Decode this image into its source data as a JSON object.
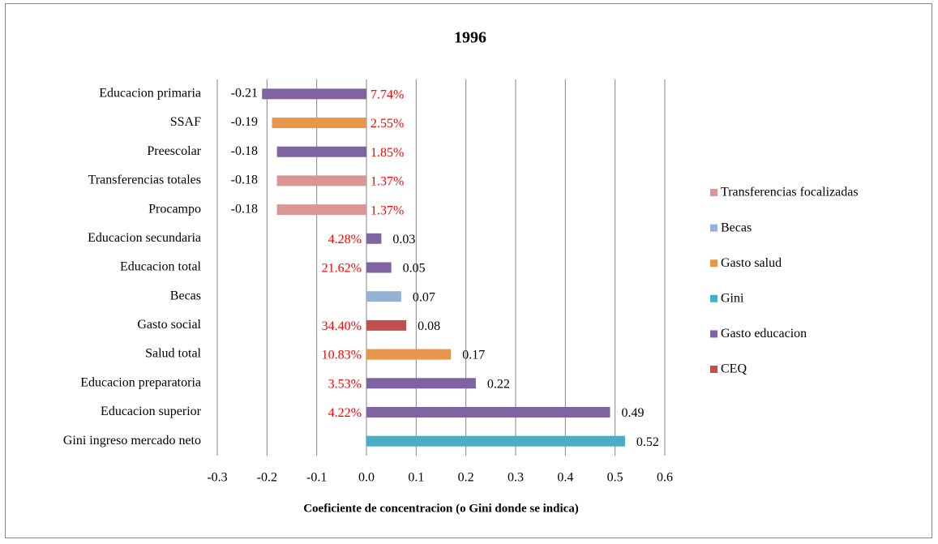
{
  "chart_data": {
    "type": "hbar",
    "title": "1996",
    "x_label": "Coeficiente de concentracion  (o Gini donde se indica)",
    "categories": [
      "Educacion primaria",
      "SSAF",
      "Preescolar",
      "Transferencias totales",
      "Procampo",
      "Educacion secundaria",
      "Educacion total",
      "Becas",
      "Gasto social",
      "Salud total",
      "Educacion preparatoria",
      "Educacion superior",
      "Gini ingreso mercado neto"
    ],
    "annotations": [
      "7.74%",
      "2.55%",
      "1.85%",
      "1.37%",
      "1.37%",
      "4.28%",
      "21.62%",
      null,
      "34.40%",
      "10.83%",
      "3.53%",
      "4.22%",
      null
    ],
    "annotation_color": "#ff0000",
    "series": [
      {
        "name": "Transferencias focalizadas",
        "color": "#d99694",
        "values": [
          null,
          null,
          null,
          -0.18,
          -0.18,
          null,
          null,
          null,
          null,
          null,
          null,
          null,
          null
        ]
      },
      {
        "name": "Becas",
        "color": "#95b3d7",
        "values": [
          null,
          null,
          null,
          null,
          null,
          null,
          null,
          0.07,
          null,
          null,
          null,
          null,
          null
        ]
      },
      {
        "name": "Gasto salud",
        "color": "#e8964a",
        "values": [
          null,
          -0.19,
          null,
          null,
          null,
          null,
          null,
          null,
          null,
          0.17,
          null,
          null,
          null
        ]
      },
      {
        "name": "Gini",
        "color": "#4bacc6",
        "values": [
          null,
          null,
          null,
          null,
          null,
          null,
          null,
          null,
          null,
          null,
          null,
          null,
          0.52
        ]
      },
      {
        "name": "Gasto educacion",
        "color": "#8064a2",
        "values": [
          -0.21,
          null,
          -0.18,
          null,
          null,
          0.03,
          0.05,
          null,
          null,
          null,
          0.22,
          0.49,
          null
        ]
      },
      {
        "name": "CEQ",
        "color": "#c0504d",
        "values": [
          null,
          null,
          null,
          null,
          null,
          null,
          null,
          null,
          0.08,
          null,
          null,
          null,
          null
        ]
      }
    ],
    "xlim": [
      -0.3,
      0.6
    ],
    "xticks": [
      -0.3,
      -0.2,
      -0.1,
      {
        "value": 0,
        "label": "0.0"
      },
      0.1,
      0.2,
      0.3,
      0.4,
      0.5,
      0.6
    ],
    "grid": true,
    "legend": "right"
  }
}
